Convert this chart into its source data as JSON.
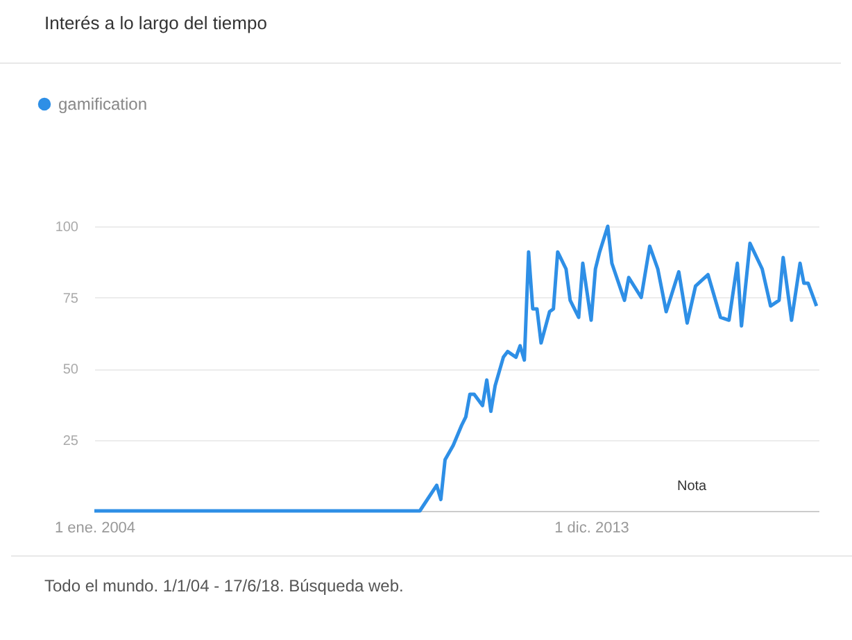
{
  "chart_data": {
    "type": "line",
    "title": "Interés a lo largo del tiempo",
    "x": [
      "2004-01",
      "2010-07",
      "2010-11",
      "2010-12",
      "2011-01",
      "2011-03",
      "2011-05",
      "2011-06",
      "2011-07",
      "2011-08",
      "2011-10",
      "2011-11",
      "2011-12",
      "2012-01",
      "2012-03",
      "2012-04",
      "2012-06",
      "2012-07",
      "2012-08",
      "2012-09",
      "2012-10",
      "2012-11",
      "2012-12",
      "2013-02",
      "2013-03",
      "2013-04",
      "2013-06",
      "2013-07",
      "2013-09",
      "2013-10",
      "2013-12",
      "2014-01",
      "2014-02",
      "2014-04",
      "2014-05",
      "2014-08",
      "2014-09",
      "2014-12",
      "2015-02",
      "2015-04",
      "2015-06",
      "2015-09",
      "2015-11",
      "2016-01",
      "2016-04",
      "2016-07",
      "2016-09",
      "2016-11",
      "2016-12",
      "2017-02",
      "2017-05",
      "2017-07",
      "2017-09",
      "2017-10",
      "2017-12",
      "2018-02",
      "2018-03",
      "2018-04",
      "2018-06"
    ],
    "series": [
      {
        "name": "gamification",
        "color": "#2e8fe6",
        "values": [
          0,
          0,
          9,
          4,
          18,
          23,
          30,
          33,
          41,
          41,
          37,
          46,
          35,
          44,
          54,
          56,
          54,
          58,
          53,
          91,
          71,
          71,
          59,
          70,
          71,
          91,
          85,
          74,
          68,
          87,
          67,
          85,
          91,
          100,
          87,
          74,
          82,
          75,
          93,
          85,
          70,
          84,
          66,
          79,
          83,
          68,
          67,
          87,
          65,
          94,
          85,
          72,
          74,
          89,
          67,
          87,
          80,
          80,
          72
        ]
      }
    ],
    "xlim": [
      "2004-01-01",
      "2018-06-17"
    ],
    "xticks": [
      {
        "value": "2004-01-01",
        "label": "1 ene. 2004"
      },
      {
        "value": "2013-12-01",
        "label": "1 dic. 2013"
      }
    ],
    "ylim": [
      0,
      100
    ],
    "yticks": [
      25,
      50,
      75,
      100
    ],
    "grid": "y",
    "legend": "top left",
    "marker": "none",
    "line_style": "solid",
    "annotations": [
      "Todo el mundo. 1/1/04 - 17/6/18. Búsqueda web.",
      "Nota"
    ]
  }
}
